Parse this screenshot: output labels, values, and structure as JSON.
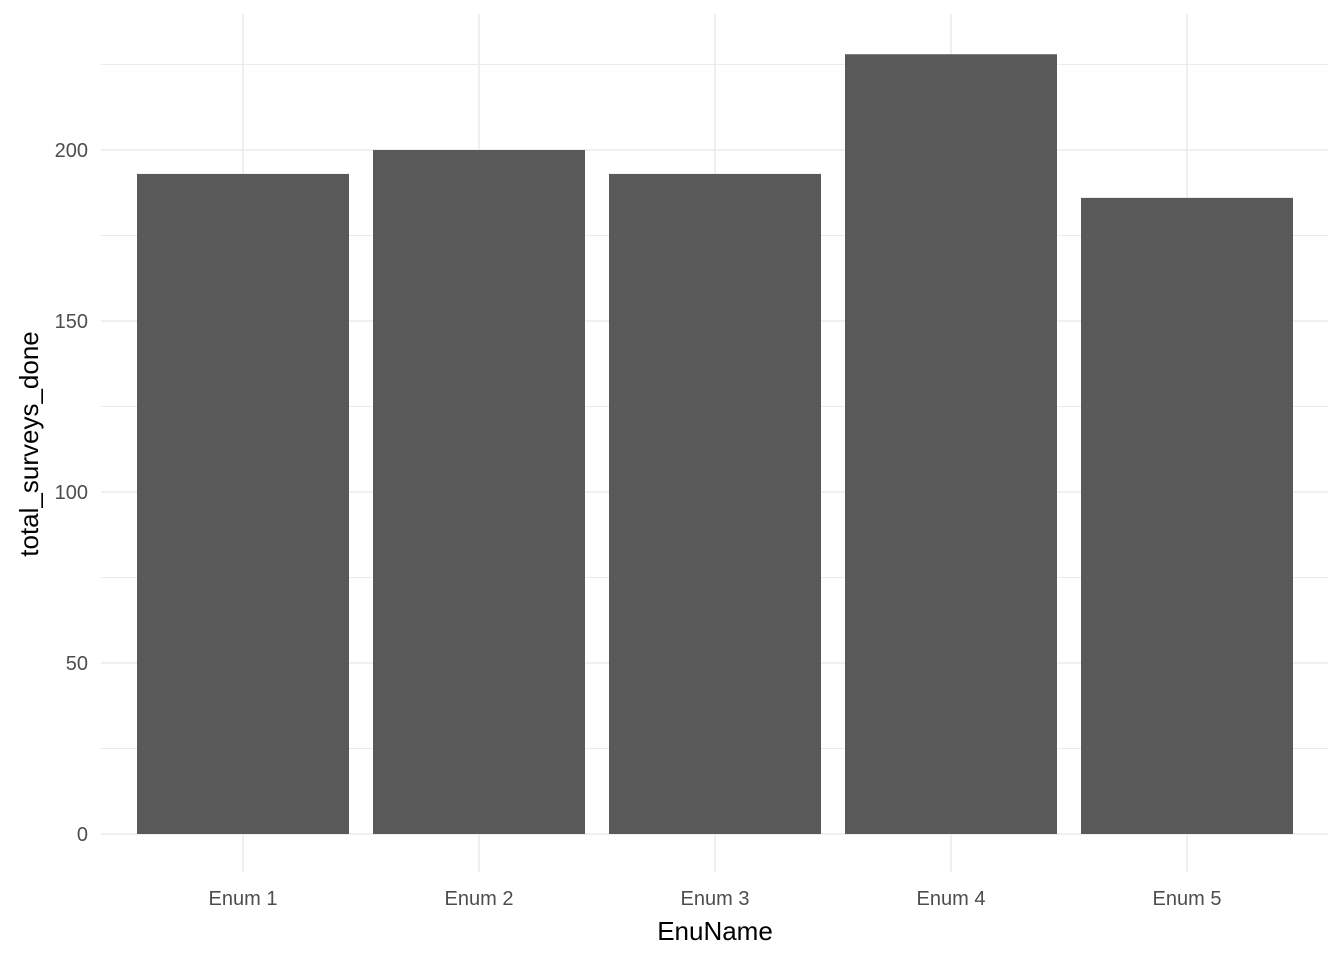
{
  "chart_data": {
    "type": "bar",
    "categories": [
      "Enum 1",
      "Enum 2",
      "Enum 3",
      "Enum 4",
      "Enum 5"
    ],
    "values": [
      193,
      200,
      193,
      228,
      186
    ],
    "title": "",
    "xlabel": "EnuName",
    "ylabel": "total_surveys_done",
    "ylim": [
      0,
      240
    ],
    "yticks": [
      0,
      50,
      100,
      150,
      200
    ],
    "grid": true,
    "bar_color": "#595959",
    "grid_color": "#ebebeb",
    "tick_label_color": "#4d4d4d"
  }
}
